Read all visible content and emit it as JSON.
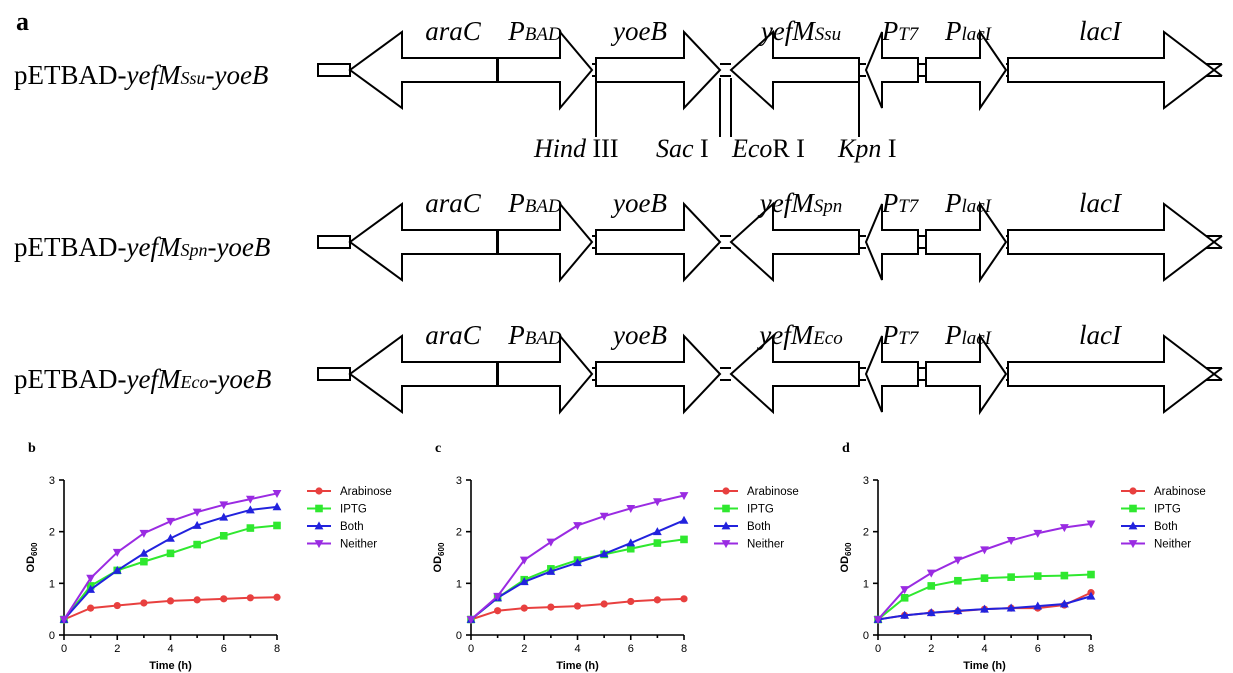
{
  "figure": {
    "panel_a_label": "a",
    "constructs": [
      {
        "prefix": "pETBAD-",
        "gene": "yefM",
        "sub": "Ssu",
        "suffix": "-yoeB",
        "yefm_label": "yefM",
        "yefm_sub": "Ssu"
      },
      {
        "prefix": "pETBAD-",
        "gene": "yefM",
        "sub": "Spn",
        "suffix": "-yoeB",
        "yefm_label": "yefM",
        "yefm_sub": "Spn"
      },
      {
        "prefix": "pETBAD-",
        "gene": "yefM",
        "sub": "Eco",
        "suffix": "-yoeB",
        "yefm_label": "yefM",
        "yefm_sub": "Eco"
      }
    ],
    "elements": {
      "araC": "araC",
      "pbad_main": "P",
      "pbad_sub": "BAD",
      "yoeB": "yoeB",
      "pt7_main": "P",
      "pt7_sub": "T7",
      "placi_main": "P",
      "placi_sub": "lacI",
      "lacI": "lacI"
    },
    "sites": {
      "hind_it": "Hind",
      "hind_rn": " III",
      "sac_it": "Sac",
      "sac_rn": " I",
      "eco_it": "Eco",
      "eco_rn": "R I",
      "kpn_it": "Kpn",
      "kpn_rn": " I"
    }
  },
  "chart_data": [
    {
      "panel": "b",
      "type": "line",
      "xlabel": "Time (h)",
      "ylabel_main": "OD",
      "ylabel_sub": "600",
      "xlim": [
        0,
        8
      ],
      "ylim": [
        0,
        3
      ],
      "xticks": [
        0,
        2,
        4,
        6,
        8
      ],
      "yticks": [
        0,
        1,
        2,
        3
      ],
      "legend": "right",
      "x": [
        0,
        1,
        2,
        3,
        4,
        5,
        6,
        7,
        8
      ],
      "series": [
        {
          "name": "Arabinose",
          "color": "#e8403f",
          "marker": "circle",
          "values": [
            0.3,
            0.52,
            0.57,
            0.62,
            0.66,
            0.68,
            0.7,
            0.72,
            0.73
          ]
        },
        {
          "name": "IPTG",
          "color": "#2fe82f",
          "marker": "square",
          "values": [
            0.3,
            0.95,
            1.25,
            1.42,
            1.58,
            1.75,
            1.92,
            2.07,
            2.12
          ]
        },
        {
          "name": "Both",
          "color": "#2222dd",
          "marker": "triangle-up",
          "values": [
            0.3,
            0.88,
            1.25,
            1.58,
            1.87,
            2.12,
            2.28,
            2.42,
            2.48
          ]
        },
        {
          "name": "Neither",
          "color": "#9a2be2",
          "marker": "triangle-down",
          "values": [
            0.3,
            1.1,
            1.6,
            1.97,
            2.2,
            2.38,
            2.52,
            2.63,
            2.74
          ]
        }
      ]
    },
    {
      "panel": "c",
      "type": "line",
      "xlabel": "Time (h)",
      "ylabel_main": "OD",
      "ylabel_sub": "600",
      "xlim": [
        0,
        8
      ],
      "ylim": [
        0,
        3
      ],
      "xticks": [
        0,
        2,
        4,
        6,
        8
      ],
      "yticks": [
        0,
        1,
        2,
        3
      ],
      "legend": "right",
      "x": [
        0,
        1,
        2,
        3,
        4,
        5,
        6,
        7,
        8
      ],
      "series": [
        {
          "name": "Arabinose",
          "color": "#e8403f",
          "marker": "circle",
          "values": [
            0.3,
            0.47,
            0.52,
            0.54,
            0.56,
            0.6,
            0.65,
            0.68,
            0.7
          ]
        },
        {
          "name": "IPTG",
          "color": "#2fe82f",
          "marker": "square",
          "values": [
            0.3,
            0.72,
            1.07,
            1.28,
            1.45,
            1.56,
            1.67,
            1.78,
            1.85
          ]
        },
        {
          "name": "Both",
          "color": "#2222dd",
          "marker": "triangle-up",
          "values": [
            0.3,
            0.72,
            1.03,
            1.23,
            1.4,
            1.57,
            1.78,
            2.0,
            2.22
          ]
        },
        {
          "name": "Neither",
          "color": "#9a2be2",
          "marker": "triangle-down",
          "values": [
            0.3,
            0.75,
            1.45,
            1.8,
            2.12,
            2.3,
            2.45,
            2.58,
            2.7
          ]
        }
      ]
    },
    {
      "panel": "d",
      "type": "line",
      "xlabel": "Time (h)",
      "ylabel_main": "OD",
      "ylabel_sub": "600",
      "xlim": [
        0,
        8
      ],
      "ylim": [
        0,
        3
      ],
      "xticks": [
        0,
        2,
        4,
        6,
        8
      ],
      "yticks": [
        0,
        1,
        2,
        3
      ],
      "legend": "right",
      "x": [
        0,
        1,
        2,
        3,
        4,
        5,
        6,
        7,
        8
      ],
      "series": [
        {
          "name": "Arabinose",
          "color": "#e8403f",
          "marker": "circle",
          "values": [
            0.3,
            0.38,
            0.43,
            0.46,
            0.5,
            0.52,
            0.52,
            0.58,
            0.82
          ]
        },
        {
          "name": "IPTG",
          "color": "#2fe82f",
          "marker": "square",
          "values": [
            0.3,
            0.72,
            0.95,
            1.05,
            1.1,
            1.12,
            1.14,
            1.15,
            1.17
          ]
        },
        {
          "name": "Both",
          "color": "#2222dd",
          "marker": "triangle-up",
          "values": [
            0.3,
            0.38,
            0.43,
            0.47,
            0.5,
            0.52,
            0.56,
            0.6,
            0.75
          ]
        },
        {
          "name": "Neither",
          "color": "#9a2be2",
          "marker": "triangle-down",
          "values": [
            0.3,
            0.88,
            1.2,
            1.45,
            1.65,
            1.83,
            1.97,
            2.08,
            2.15
          ]
        }
      ]
    }
  ]
}
